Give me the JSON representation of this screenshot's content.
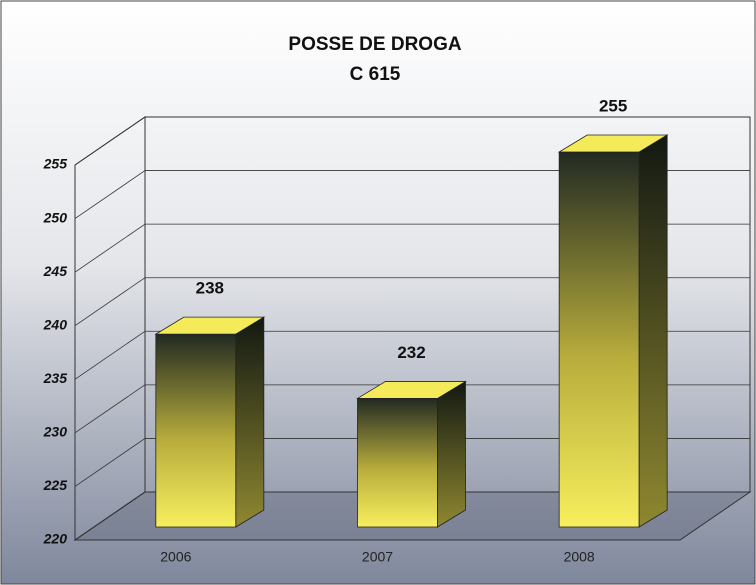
{
  "chart_data": {
    "type": "bar3d",
    "title": "POSSE DE DROGA",
    "subtitle": "C 615",
    "categories": [
      "2006",
      "2007",
      "2008"
    ],
    "values": [
      238,
      232,
      255
    ],
    "ylim": [
      220,
      255
    ],
    "yticks": [
      220,
      225,
      230,
      235,
      240,
      245,
      250,
      255
    ],
    "color": "#f4ea5a",
    "grid": true
  }
}
